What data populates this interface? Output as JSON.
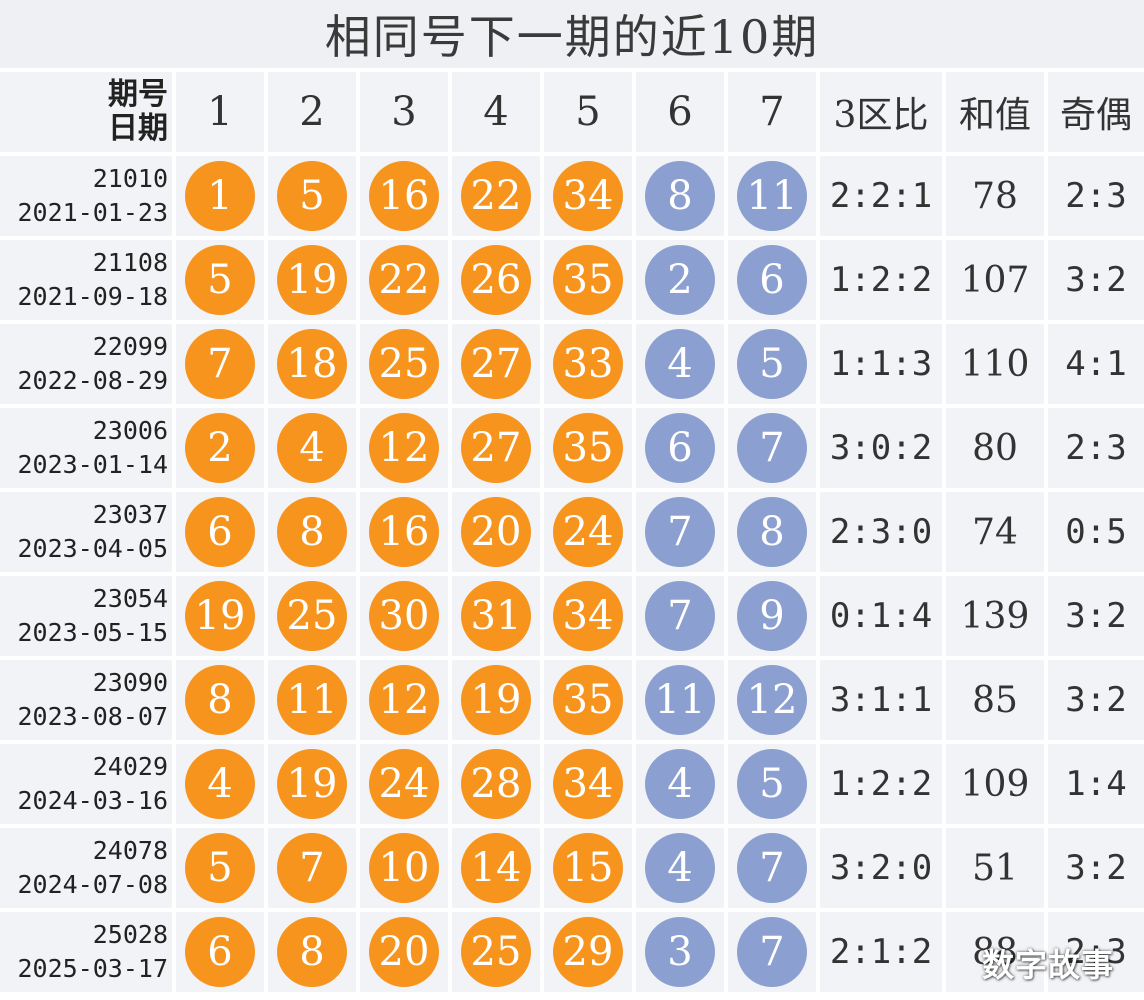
{
  "title": "相同号下一期的近10期",
  "header": {
    "corner_line1": "期号",
    "corner_line2": "日期",
    "ball_cols": [
      "1",
      "2",
      "3",
      "4",
      "5",
      "6",
      "7"
    ],
    "zone_ratio": "3区比",
    "sum": "和值",
    "odd_even": "奇偶"
  },
  "rows": [
    {
      "issue": "21010",
      "date": "2021-01-23",
      "red": [
        "1",
        "5",
        "16",
        "22",
        "34"
      ],
      "blue": [
        "8",
        "11"
      ],
      "zone_ratio": "2:2:1",
      "sum": "78",
      "odd_even": "2:3"
    },
    {
      "issue": "21108",
      "date": "2021-09-18",
      "red": [
        "5",
        "19",
        "22",
        "26",
        "35"
      ],
      "blue": [
        "2",
        "6"
      ],
      "zone_ratio": "1:2:2",
      "sum": "107",
      "odd_even": "3:2"
    },
    {
      "issue": "22099",
      "date": "2022-08-29",
      "red": [
        "7",
        "18",
        "25",
        "27",
        "33"
      ],
      "blue": [
        "4",
        "5"
      ],
      "zone_ratio": "1:1:3",
      "sum": "110",
      "odd_even": "4:1"
    },
    {
      "issue": "23006",
      "date": "2023-01-14",
      "red": [
        "2",
        "4",
        "12",
        "27",
        "35"
      ],
      "blue": [
        "6",
        "7"
      ],
      "zone_ratio": "3:0:2",
      "sum": "80",
      "odd_even": "2:3"
    },
    {
      "issue": "23037",
      "date": "2023-04-05",
      "red": [
        "6",
        "8",
        "16",
        "20",
        "24"
      ],
      "blue": [
        "7",
        "8"
      ],
      "zone_ratio": "2:3:0",
      "sum": "74",
      "odd_even": "0:5"
    },
    {
      "issue": "23054",
      "date": "2023-05-15",
      "red": [
        "19",
        "25",
        "30",
        "31",
        "34"
      ],
      "blue": [
        "7",
        "9"
      ],
      "zone_ratio": "0:1:4",
      "sum": "139",
      "odd_even": "3:2"
    },
    {
      "issue": "23090",
      "date": "2023-08-07",
      "red": [
        "8",
        "11",
        "12",
        "19",
        "35"
      ],
      "blue": [
        "11",
        "12"
      ],
      "zone_ratio": "3:1:1",
      "sum": "85",
      "odd_even": "3:2"
    },
    {
      "issue": "24029",
      "date": "2024-03-16",
      "red": [
        "4",
        "19",
        "24",
        "28",
        "34"
      ],
      "blue": [
        "4",
        "5"
      ],
      "zone_ratio": "1:2:2",
      "sum": "109",
      "odd_even": "1:4"
    },
    {
      "issue": "24078",
      "date": "2024-07-08",
      "red": [
        "5",
        "7",
        "10",
        "14",
        "15"
      ],
      "blue": [
        "4",
        "7"
      ],
      "zone_ratio": "3:2:0",
      "sum": "51",
      "odd_even": "3:2"
    },
    {
      "issue": "25028",
      "date": "2025-03-17",
      "red": [
        "6",
        "8",
        "20",
        "25",
        "29"
      ],
      "blue": [
        "3",
        "7"
      ],
      "zone_ratio": "2:1:2",
      "sum": "88",
      "odd_even": "2:3"
    }
  ],
  "watermark": "数字故事",
  "colors": {
    "red_ball": "#f7941d",
    "blue_ball": "#8b9fd0",
    "cell_bg": "#f1f3f6",
    "title_bg": "#eef0f4"
  }
}
